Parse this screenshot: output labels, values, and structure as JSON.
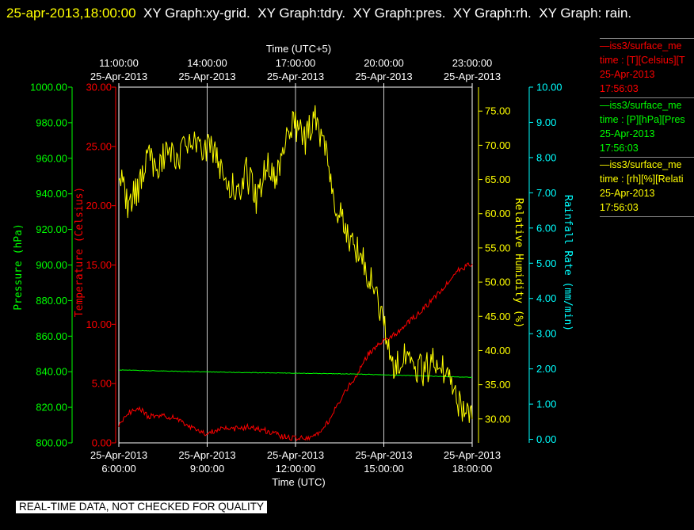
{
  "header": {
    "timestamp": "25-apr-2013,18:00:00",
    "titles": [
      "XY Graph:xy-grid.",
      "XY Graph:tdry.",
      "XY Graph:pres.",
      "XY Graph:rh.",
      "XY Graph:",
      "rain."
    ]
  },
  "colors": {
    "temperature": "#ff0000",
    "pressure": "#00ff00",
    "humidity": "#ffff00",
    "rain": "#00ffff",
    "axis": "#ffffff",
    "grid": "#cccccc"
  },
  "legend": [
    {
      "line1": "—iss3/surface_me",
      "line2": "time : [T][Celsius][T",
      "line3": "25-Apr-2013",
      "line4": "17:56:03",
      "color": "#ff0000"
    },
    {
      "line1": "—iss3/surface_me",
      "line2": "time : [P][hPa][Pres",
      "line3": "25-Apr-2013",
      "line4": "17:56:03",
      "color": "#00ff00"
    },
    {
      "line1": "—iss3/surface_me",
      "line2": "time : [rh][%][Relati",
      "line3": "25-Apr-2013",
      "line4": "17:56:03",
      "color": "#ffff00"
    }
  ],
  "quality_note": "REAL-TIME DATA, NOT CHECKED FOR QUALITY",
  "chart_data": {
    "type": "line",
    "x_bottom": {
      "label": "Time (UTC)",
      "range": [
        "2013-04-25 06:00",
        "2013-04-25 18:00"
      ],
      "ticks": [
        {
          "date": "25-Apr-2013",
          "time": "6:00:00",
          "value": "2013-04-25 06:00"
        },
        {
          "date": "25-Apr-2013",
          "time": "9:00:00",
          "value": "2013-04-25 09:00"
        },
        {
          "date": "25-Apr-2013",
          "time": "12:00:00",
          "value": "2013-04-25 12:00"
        },
        {
          "date": "25-Apr-2013",
          "time": "15:00:00",
          "value": "2013-04-25 15:00"
        },
        {
          "date": "25-Apr-2013",
          "time": "18:00:00",
          "value": "2013-04-25 18:00"
        }
      ]
    },
    "x_top": {
      "label": "Time (UTC+5)",
      "ticks": [
        {
          "time": "11:00:00",
          "date": "25-Apr-2013"
        },
        {
          "time": "14:00:00",
          "date": "25-Apr-2013"
        },
        {
          "time": "17:00:00",
          "date": "25-Apr-2013"
        },
        {
          "time": "20:00:00",
          "date": "25-Apr-2013"
        },
        {
          "time": "23:00:00",
          "date": "25-Apr-2013"
        }
      ]
    },
    "grid": true,
    "axes": {
      "pressure": {
        "label": "Pressure (hPa)",
        "range": [
          800,
          1000
        ],
        "ticks": [
          "800.00",
          "820.00",
          "840.00",
          "860.00",
          "880.00",
          "900.00",
          "920.00",
          "940.00",
          "960.00",
          "980.00",
          "1000.00"
        ]
      },
      "temperature": {
        "label": "Temperature (Celsius)",
        "range": [
          0,
          30
        ],
        "ticks": [
          "0.00",
          "5.00",
          "10.00",
          "15.00",
          "20.00",
          "25.00",
          "30.00"
        ]
      },
      "humidity": {
        "label": "Relative Humidity (%)",
        "range": [
          26.5,
          78.5
        ],
        "ticks": [
          "30.00",
          "35.00",
          "40.00",
          "45.00",
          "50.00",
          "55.00",
          "60.00",
          "65.00",
          "70.00",
          "75.00"
        ]
      },
      "rain": {
        "label": "Rainfall Rate (mm/min)",
        "range": [
          -0.1,
          10
        ],
        "ticks": [
          "0.00",
          "1.00",
          "2.00",
          "3.00",
          "4.00",
          "5.00",
          "6.00",
          "7.00",
          "8.00",
          "9.00",
          "10.00"
        ]
      }
    },
    "series": [
      {
        "name": "iss3/surface_me time : [T][Celsius]",
        "axis": "temperature",
        "x": [
          "2013-04-25 06:00",
          "2013-04-25 06:20",
          "2013-04-25 06:40",
          "2013-04-25 07:00",
          "2013-04-25 07:30",
          "2013-04-25 08:00",
          "2013-04-25 08:30",
          "2013-04-25 09:00",
          "2013-04-25 09:30",
          "2013-04-25 10:00",
          "2013-04-25 10:30",
          "2013-04-25 11:00",
          "2013-04-25 11:30",
          "2013-04-25 12:00",
          "2013-04-25 12:30",
          "2013-04-25 13:00",
          "2013-04-25 13:30",
          "2013-04-25 14:00",
          "2013-04-25 14:30",
          "2013-04-25 15:00",
          "2013-04-25 15:30",
          "2013-04-25 16:00",
          "2013-04-25 16:30",
          "2013-04-25 17:00",
          "2013-04-25 17:30",
          "2013-04-25 18:00"
        ],
        "y": [
          1.5,
          2.5,
          3.0,
          2.2,
          2.3,
          2.0,
          1.2,
          0.8,
          1.3,
          1.2,
          1.4,
          1.0,
          0.6,
          0.4,
          0.3,
          1.3,
          3.5,
          5.5,
          7.6,
          8.6,
          9.4,
          10.5,
          11.7,
          13.0,
          14.5,
          15.1
        ]
      },
      {
        "name": "iss3/surface_me time : [P][hPa]",
        "axis": "pressure",
        "x": [
          "2013-04-25 06:00",
          "2013-04-25 08:00",
          "2013-04-25 10:00",
          "2013-04-25 12:00",
          "2013-04-25 14:00",
          "2013-04-25 16:00",
          "2013-04-25 18:00"
        ],
        "y": [
          841.0,
          840.2,
          839.6,
          839.2,
          838.7,
          837.8,
          836.8
        ]
      },
      {
        "name": "iss3/surface_me time : [rh][%]",
        "axis": "humidity",
        "x": [
          "2013-04-25 06:00",
          "2013-04-25 06:20",
          "2013-04-25 06:40",
          "2013-04-25 07:00",
          "2013-04-25 07:20",
          "2013-04-25 07:40",
          "2013-04-25 08:00",
          "2013-04-25 08:20",
          "2013-04-25 08:40",
          "2013-04-25 09:00",
          "2013-04-25 09:20",
          "2013-04-25 09:40",
          "2013-04-25 10:00",
          "2013-04-25 10:20",
          "2013-04-25 10:40",
          "2013-04-25 11:00",
          "2013-04-25 11:20",
          "2013-04-25 11:40",
          "2013-04-25 12:00",
          "2013-04-25 12:20",
          "2013-04-25 12:40",
          "2013-04-25 13:00",
          "2013-04-25 13:20",
          "2013-04-25 13:40",
          "2013-04-25 14:00",
          "2013-04-25 14:20",
          "2013-04-25 14:40",
          "2013-04-25 15:00",
          "2013-04-25 15:20",
          "2013-04-25 15:40",
          "2013-04-25 16:00",
          "2013-04-25 16:20",
          "2013-04-25 16:40",
          "2013-04-25 17:00",
          "2013-04-25 17:20",
          "2013-04-25 17:40",
          "2013-04-25 18:00"
        ],
        "y": [
          66,
          61,
          64,
          68,
          67,
          70,
          68,
          71,
          69,
          70,
          68,
          65,
          63,
          66,
          62,
          67,
          65,
          72,
          73,
          71,
          74,
          70,
          62,
          58,
          55,
          53,
          49,
          44,
          38,
          39,
          38,
          37,
          38,
          37,
          35,
          31,
          30
        ]
      },
      {
        "name": "Rainfall Rate",
        "axis": "rain",
        "x": [],
        "y": []
      }
    ]
  }
}
